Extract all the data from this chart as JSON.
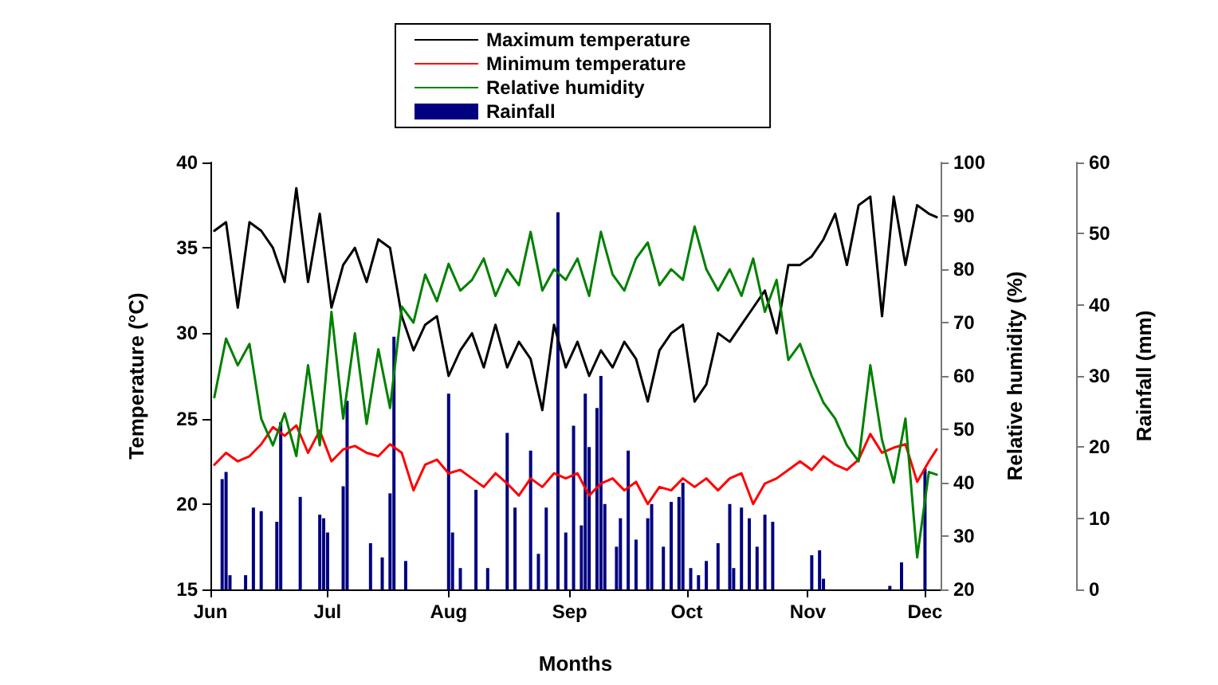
{
  "chart_data": {
    "type": "line",
    "xlabel": "Months",
    "ylabel": "Temperature (°C)",
    "y2label": "Relative humidity (%)",
    "y3label": "Rainfall (mm)",
    "x": [
      "--06-02",
      "--06-05",
      "--06-08",
      "--06-11",
      "--06-14",
      "--06-17",
      "--06-20",
      "--06-23",
      "--06-26",
      "--06-29",
      "--07-02",
      "--07-05",
      "--07-08",
      "--07-11",
      "--07-14",
      "--07-17",
      "--07-20",
      "--07-23",
      "--07-26",
      "--07-29",
      "--08-01",
      "--08-04",
      "--08-07",
      "--08-10",
      "--08-13",
      "--08-16",
      "--08-19",
      "--08-22",
      "--08-25",
      "--08-28",
      "--08-31",
      "--09-03",
      "--09-06",
      "--09-09",
      "--09-12",
      "--09-15",
      "--09-18",
      "--09-21",
      "--09-24",
      "--09-27",
      "--09-30",
      "--10-03",
      "--10-06",
      "--10-09",
      "--10-12",
      "--10-15",
      "--10-18",
      "--10-21",
      "--10-24",
      "--10-27",
      "--10-30",
      "--11-02",
      "--11-05",
      "--11-08",
      "--11-11",
      "--11-14",
      "--11-17",
      "--11-20",
      "--11-23",
      "--11-26",
      "--11-29",
      "--12-02",
      "--12-04"
    ],
    "series": [
      {
        "name": "Maximum temperature",
        "color": "#000000",
        "values": [
          36,
          36.5,
          31.5,
          36.5,
          36,
          35,
          33,
          38.5,
          33,
          37,
          31.5,
          34,
          35,
          33,
          35.5,
          35,
          31,
          29,
          30.5,
          31,
          27.5,
          29,
          30,
          28,
          30.5,
          28,
          29.5,
          28.5,
          25.5,
          30.5,
          28,
          29.5,
          27.5,
          29,
          28,
          29.5,
          28.5,
          26,
          29,
          30,
          30.5,
          26,
          27,
          30,
          29.5,
          30.5,
          31.5,
          32.5,
          30,
          34,
          34,
          34.5,
          35.5,
          37,
          34,
          37.5,
          38,
          31,
          38,
          34,
          37.5,
          37,
          36.8
        ]
      },
      {
        "name": "Minimum temperature",
        "color": "#ff0000",
        "values": [
          22.3,
          23,
          22.5,
          22.8,
          23.5,
          24.5,
          24,
          24.6,
          23,
          24.3,
          22.5,
          23.2,
          23.4,
          23,
          22.8,
          23.5,
          23,
          20.8,
          22.3,
          22.6,
          21.8,
          22,
          21.5,
          21,
          21.8,
          21.2,
          20.5,
          21.5,
          21,
          21.8,
          21.5,
          21.8,
          20.5,
          21.2,
          21.5,
          20.8,
          21.3,
          20,
          21,
          20.8,
          21.5,
          21,
          21.5,
          20.8,
          21.5,
          21.8,
          20,
          21.2,
          21.5,
          22,
          22.5,
          22,
          22.8,
          22.3,
          22,
          22.6,
          24.1,
          23,
          23.3,
          23.5,
          21.3,
          22.5,
          23.2
        ]
      },
      {
        "name": "Relative humidity",
        "axis": "y2",
        "color": "#008000",
        "values": [
          56,
          67,
          62,
          66,
          52,
          47,
          53,
          45,
          62,
          47,
          72,
          52,
          68,
          51,
          65,
          54,
          73,
          70,
          79,
          74,
          81,
          76,
          78,
          82,
          75,
          80,
          77,
          87,
          76,
          80,
          78,
          82,
          75,
          87,
          79,
          76,
          82,
          85,
          77,
          80,
          78,
          88,
          80,
          76,
          80,
          75,
          82,
          72,
          78,
          63,
          66,
          60,
          55,
          52,
          47,
          44,
          62,
          48,
          40,
          52,
          26,
          42,
          41.5
        ]
      },
      {
        "name": "Rainfall",
        "type": "bar",
        "axis": "y3",
        "color": "#000080",
        "x": [
          "--06-04",
          "--06-05",
          "--06-06",
          "--06-10",
          "--06-12",
          "--06-14",
          "--06-18",
          "--06-19",
          "--06-24",
          "--06-29",
          "--06-30",
          "--07-01",
          "--07-05",
          "--07-06",
          "--07-12",
          "--07-15",
          "--07-17",
          "--07-18",
          "--07-21",
          "--08-01",
          "--08-02",
          "--08-04",
          "--08-08",
          "--08-11",
          "--08-16",
          "--08-18",
          "--08-22",
          "--08-24",
          "--08-26",
          "--08-29",
          "--08-31",
          "--09-02",
          "--09-04",
          "--09-05",
          "--09-06",
          "--09-08",
          "--09-09",
          "--09-10",
          "--09-13",
          "--09-14",
          "--09-16",
          "--09-18",
          "--09-21",
          "--09-22",
          "--09-25",
          "--09-27",
          "--09-29",
          "--09-30",
          "--10-02",
          "--10-04",
          "--10-06",
          "--10-09",
          "--10-12",
          "--10-13",
          "--10-15",
          "--10-17",
          "--10-19",
          "--10-21",
          "--10-23",
          "--11-02",
          "--11-04",
          "--11-05",
          "--11-22",
          "--11-25",
          "--12-01"
        ],
        "values": [
          15.5,
          16.5,
          2,
          2,
          11.5,
          11,
          9.5,
          23.5,
          13,
          10.5,
          10,
          8,
          14.5,
          26.5,
          6.5,
          4.5,
          13.5,
          35.5,
          4,
          27.5,
          8,
          3,
          14,
          3,
          22,
          11.5,
          19.5,
          5,
          11.5,
          53,
          8,
          23,
          9,
          27.5,
          20,
          25.5,
          30,
          12,
          6,
          10,
          19.5,
          7,
          10,
          12,
          6,
          12.3,
          13,
          15,
          3,
          2,
          4,
          6.5,
          12,
          3,
          11.5,
          10,
          6,
          10.5,
          9.5,
          4.8,
          5.5,
          1.5,
          0.5,
          3.8,
          17
        ]
      }
    ],
    "xlim": [
      "--06-01",
      "--12-05"
    ],
    "xticks": [
      {
        "value": "--06-01",
        "label": "Jun"
      },
      {
        "value": "--07-01",
        "label": "Jul"
      },
      {
        "value": "--08-01",
        "label": "Aug"
      },
      {
        "value": "--09-01",
        "label": "Sep"
      },
      {
        "value": "--10-01",
        "label": "Oct"
      },
      {
        "value": "--11-01",
        "label": "Nov"
      },
      {
        "value": "--12-01",
        "label": "Dec"
      }
    ],
    "ylim": [
      15,
      40
    ],
    "yticks": [
      15,
      20,
      25,
      30,
      35,
      40
    ],
    "y2lim": [
      20,
      100
    ],
    "y2ticks": [
      20,
      30,
      40,
      50,
      60,
      70,
      80,
      90,
      100
    ],
    "y3lim": [
      0,
      60
    ],
    "y3ticks": [
      0,
      10,
      20,
      30,
      40,
      50,
      60
    ],
    "legend": "top",
    "grid": false
  }
}
